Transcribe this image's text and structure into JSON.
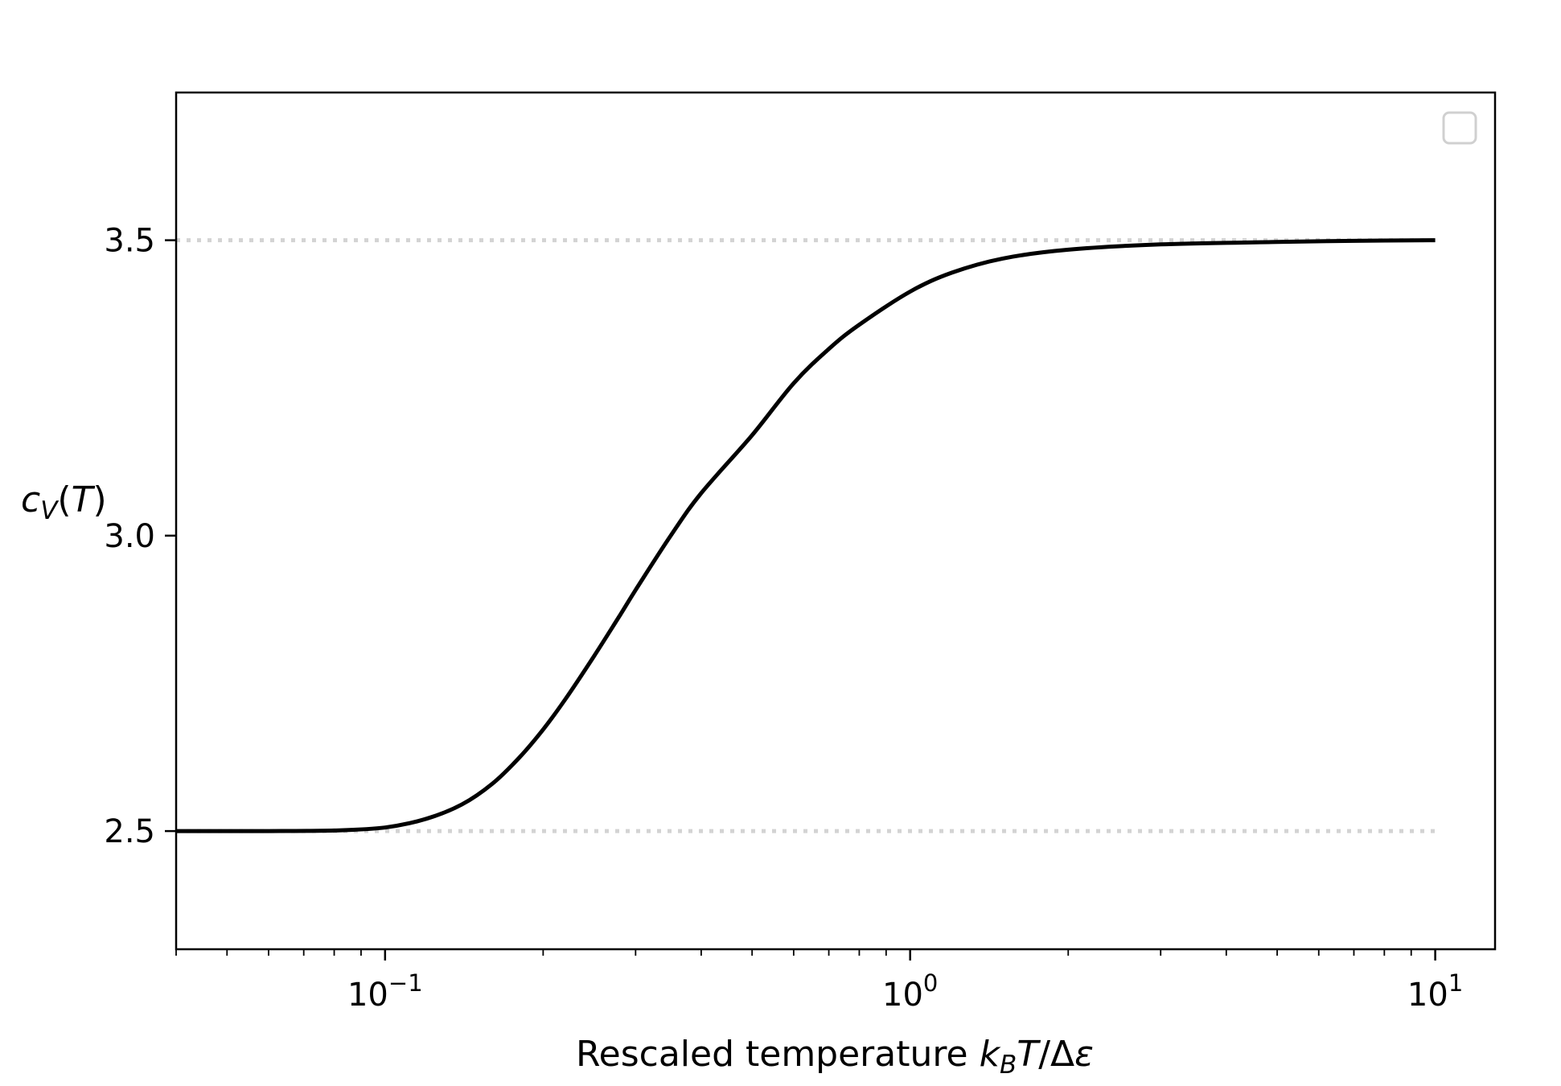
{
  "chart_data": {
    "type": "line",
    "xscale": "log",
    "xlim": [
      0.04,
      13
    ],
    "ylim": [
      2.3,
      3.75
    ],
    "grid": false,
    "legend": {
      "placement": "top-right",
      "entries": []
    },
    "xlabel": {
      "text": "Rescaled temperature ",
      "math": "k_B T/Δε"
    },
    "ylabel": {
      "math": "c_V(T)"
    },
    "x_major_ticks": [
      {
        "value": 0.1,
        "base": "10",
        "exp": "−1"
      },
      {
        "value": 1,
        "base": "10",
        "exp": "0"
      },
      {
        "value": 10,
        "base": "10",
        "exp": "1"
      }
    ],
    "x_minor_ticks": [
      0.04,
      0.05,
      0.06,
      0.07,
      0.08,
      0.09,
      0.2,
      0.3,
      0.4,
      0.5,
      0.6,
      0.7,
      0.8,
      0.9,
      2,
      3,
      4,
      5,
      6,
      7,
      8,
      9
    ],
    "y_ticks": [
      {
        "value": 2.5,
        "label": "2.5"
      },
      {
        "value": 3.0,
        "label": "3.0"
      },
      {
        "value": 3.5,
        "label": "3.5"
      }
    ],
    "reference_lines": [
      {
        "y": 3.5,
        "x_range": [
          0.04,
          10
        ],
        "color": "#d3d3d3",
        "style": "dotted"
      },
      {
        "y": 2.5,
        "x_range": [
          0.04,
          10
        ],
        "color": "#d3d3d3",
        "style": "dotted"
      }
    ],
    "series": [
      {
        "color": "#000000",
        "x": [
          0.04,
          0.06,
          0.08,
          0.1,
          0.12,
          0.14,
          0.16,
          0.18,
          0.2,
          0.22,
          0.25,
          0.28,
          0.3,
          0.35,
          0.4,
          0.5,
          0.6,
          0.7,
          0.8,
          1.0,
          1.2,
          1.5,
          2.0,
          3.0,
          5.0,
          7.0,
          10.0
        ],
        "y": [
          2.5,
          2.5,
          2.501,
          2.506,
          2.521,
          2.545,
          2.58,
          2.624,
          2.672,
          2.722,
          2.796,
          2.865,
          2.908,
          3.0,
          3.072,
          3.17,
          3.258,
          3.316,
          3.357,
          3.413,
          3.445,
          3.469,
          3.484,
          3.493,
          3.497,
          3.499,
          3.5
        ]
      }
    ]
  }
}
